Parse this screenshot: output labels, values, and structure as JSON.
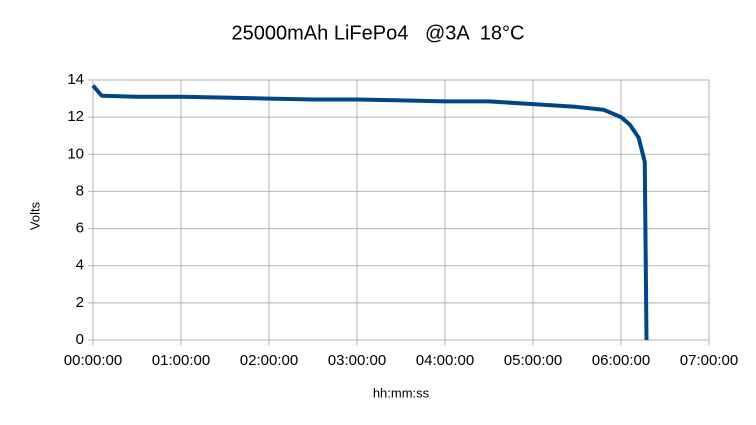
{
  "chart_data": {
    "type": "line",
    "title": "25000mAh LiFePo4   @3A  18°C",
    "x_label": "hh:mm:ss",
    "y_label": "Volts",
    "x": [
      0,
      0.1,
      0.5,
      1.0,
      1.5,
      2.0,
      2.5,
      3.0,
      3.5,
      4.0,
      4.5,
      5.0,
      5.5,
      5.8,
      6.0,
      6.1,
      6.2,
      6.27,
      6.29
    ],
    "series": [
      {
        "name": "Volts",
        "color": "#004586",
        "values": [
          13.7,
          13.15,
          13.1,
          13.1,
          13.05,
          13.0,
          12.95,
          12.95,
          12.9,
          12.85,
          12.85,
          12.7,
          12.55,
          12.4,
          12.0,
          11.6,
          10.9,
          9.6,
          0
        ]
      }
    ],
    "xlim": [
      0,
      7
    ],
    "xticks": [
      {
        "value": 0,
        "label": "00:00:00"
      },
      {
        "value": 1,
        "label": "01:00:00"
      },
      {
        "value": 2,
        "label": "02:00:00"
      },
      {
        "value": 3,
        "label": "03:00:00"
      },
      {
        "value": 4,
        "label": "04:00:00"
      },
      {
        "value": 5,
        "label": "05:00:00"
      },
      {
        "value": 6,
        "label": "06:00:00"
      },
      {
        "value": 7,
        "label": "07:00:00"
      }
    ],
    "ylim": [
      0,
      14
    ],
    "yticks": [
      0,
      2,
      4,
      6,
      8,
      10,
      12,
      14
    ],
    "grid": true
  }
}
